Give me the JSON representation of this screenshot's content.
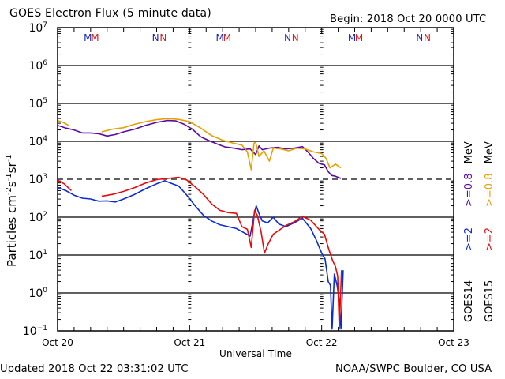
{
  "header": {
    "title": "GOES Electron Flux (5 minute data)",
    "begin": "Begin: 2018 Oct 20 0000 UTC"
  },
  "footer": {
    "updated": "Updated 2018 Oct 22 03:31:02 UTC",
    "credit": "NOAA/SWPC Boulder, CO USA"
  },
  "colors": {
    "goes14_08": "#5a0aa0",
    "goes15_08": "#e8a000",
    "goes14_2": "#0a2ad8",
    "goes15_2": "#e80a0a",
    "axis": "#000000"
  },
  "markers": [
    {
      "label": "M",
      "day": 0,
      "hour": 5.5,
      "color": "#1a2ab8"
    },
    {
      "label": "M",
      "day": 0,
      "hour": 6.8,
      "color": "#d81a1a"
    },
    {
      "label": "N",
      "day": 0,
      "hour": 17.8,
      "color": "#1a2ab8"
    },
    {
      "label": "N",
      "day": 0,
      "hour": 19.2,
      "color": "#d81a1a"
    },
    {
      "label": "M",
      "day": 1,
      "hour": 5.5,
      "color": "#1a2ab8"
    },
    {
      "label": "M",
      "day": 1,
      "hour": 6.8,
      "color": "#d81a1a"
    },
    {
      "label": "N",
      "day": 1,
      "hour": 17.8,
      "color": "#1a2ab8"
    },
    {
      "label": "N",
      "day": 1,
      "hour": 19.2,
      "color": "#d81a1a"
    },
    {
      "label": "M",
      "day": 2,
      "hour": 5.5,
      "color": "#1a2ab8"
    },
    {
      "label": "M",
      "day": 2,
      "hour": 6.8,
      "color": "#d81a1a"
    },
    {
      "label": "N",
      "day": 2,
      "hour": 17.8,
      "color": "#1a2ab8"
    },
    {
      "label": "N",
      "day": 2,
      "hour": 19.2,
      "color": "#d81a1a"
    }
  ],
  "chart_data": {
    "type": "line",
    "title": "GOES Electron Flux (5 minute data)",
    "xlabel": "Universal Time",
    "ylabel_base": "Particles cm",
    "ylabel_exp1": "-2",
    "ylabel_mid1": "s",
    "ylabel_exp2": "-1",
    "ylabel_mid2": "sr",
    "ylabel_exp3": "-1",
    "x_unit": "hours since 2018 Oct 20 0000 UTC",
    "xlim": [
      0,
      72
    ],
    "ylim_log10": [
      -1,
      7
    ],
    "y_scale": "log",
    "x_ticks": [
      {
        "hour": 0,
        "label": "Oct 20"
      },
      {
        "hour": 24,
        "label": "Oct 21"
      },
      {
        "hour": 48,
        "label": "Oct 22"
      },
      {
        "hour": 72,
        "label": "Oct 23"
      }
    ],
    "y_ticks": [
      {
        "exp": 7,
        "base": "10",
        "sup": "7"
      },
      {
        "exp": 6,
        "base": "10",
        "sup": "6"
      },
      {
        "exp": 5,
        "base": "10",
        "sup": "5"
      },
      {
        "exp": 4,
        "base": "10",
        "sup": "4"
      },
      {
        "exp": 3,
        "base": "10",
        "sup": "3"
      },
      {
        "exp": 2,
        "base": "10",
        "sup": "2"
      },
      {
        "exp": 1,
        "base": "10",
        "sup": "1"
      },
      {
        "exp": 0,
        "base": "10",
        "sup": "0"
      },
      {
        "exp": -1,
        "base": "10",
        "sup": "−1"
      }
    ],
    "threshold_log10": 3,
    "gridlines_log10": [
      6,
      5,
      4,
      2,
      1,
      0
    ],
    "legend": {
      "placement": "right",
      "energy_08_14": ">=0.8",
      "energy_08_15": ">=0.8",
      "energy_2_14": ">=2",
      "energy_2_15": ">=2",
      "unit14": "MeV",
      "unit15": "MeV",
      "sat14": "GOES14",
      "sat15": "GOES15"
    },
    "series": [
      {
        "name": "GOES14 >=0.8 MeV",
        "color": "#5a0aa0",
        "segments": [
          [
            [
              0,
              4.42
            ],
            [
              1.5,
              4.35
            ],
            [
              3,
              4.3
            ],
            [
              4.5,
              4.22
            ],
            [
              6,
              4.22
            ],
            [
              7.5,
              4.2
            ],
            [
              9,
              4.14
            ],
            [
              10.5,
              4.18
            ],
            [
              12,
              4.25
            ],
            [
              14,
              4.32
            ],
            [
              16,
              4.42
            ],
            [
              18,
              4.5
            ],
            [
              20,
              4.55
            ],
            [
              21.5,
              4.54
            ],
            [
              23,
              4.45
            ],
            [
              24.5,
              4.32
            ],
            [
              26,
              4.12
            ],
            [
              27.5,
              4.02
            ],
            [
              29,
              3.93
            ],
            [
              30.5,
              3.85
            ],
            [
              32,
              3.82
            ],
            [
              33.5,
              3.78
            ],
            [
              35,
              3.8
            ],
            [
              36,
              3.65
            ],
            [
              36.6,
              3.88
            ],
            [
              37.2,
              3.78
            ],
            [
              38.5,
              3.82
            ],
            [
              40,
              3.84
            ],
            [
              41.5,
              3.8
            ],
            [
              43,
              3.82
            ],
            [
              44.5,
              3.86
            ],
            [
              45.5,
              3.72
            ],
            [
              46.5,
              3.55
            ],
            [
              47.5,
              3.42
            ],
            [
              48.5,
              3.38
            ],
            [
              49.2,
              3.2
            ],
            [
              49.8,
              3.1
            ],
            [
              50.5,
              3.08
            ],
            [
              51.5,
              3.02
            ]
          ]
        ]
      },
      {
        "name": "GOES15 >=0.8 MeV",
        "color": "#e8a000",
        "segments": [
          [
            [
              0,
              4.55
            ],
            [
              1,
              4.5
            ],
            [
              2,
              4.42
            ]
          ],
          [
            [
              8,
              4.25
            ],
            [
              10,
              4.32
            ],
            [
              12,
              4.36
            ],
            [
              14,
              4.45
            ],
            [
              16,
              4.52
            ],
            [
              18,
              4.57
            ],
            [
              20,
              4.6
            ],
            [
              22,
              4.58
            ],
            [
              24,
              4.52
            ],
            [
              26,
              4.35
            ],
            [
              28,
              4.15
            ],
            [
              30,
              4.03
            ],
            [
              32,
              3.95
            ],
            [
              33.5,
              3.9
            ],
            [
              34.5,
              3.72
            ],
            [
              35.2,
              3.25
            ],
            [
              35.7,
              3.95
            ],
            [
              36,
              3.98
            ],
            [
              36.6,
              3.6
            ],
            [
              37.5,
              3.75
            ],
            [
              38.5,
              3.48
            ],
            [
              39.2,
              3.82
            ],
            [
              40.5,
              3.8
            ],
            [
              42,
              3.75
            ],
            [
              43.5,
              3.82
            ],
            [
              45,
              3.8
            ],
            [
              46.5,
              3.72
            ],
            [
              48,
              3.68
            ],
            [
              48.8,
              3.55
            ],
            [
              49.5,
              3.3
            ],
            [
              50.5,
              3.4
            ],
            [
              51.5,
              3.3
            ]
          ]
        ]
      },
      {
        "name": "GOES14 >=2 MeV",
        "color": "#0a2ad8",
        "segments": [
          [
            [
              0,
              2.78
            ],
            [
              1.5,
              2.7
            ],
            [
              3,
              2.58
            ],
            [
              4.5,
              2.5
            ],
            [
              6,
              2.48
            ],
            [
              7.5,
              2.42
            ],
            [
              9,
              2.43
            ],
            [
              10.5,
              2.4
            ],
            [
              12,
              2.48
            ],
            [
              14,
              2.6
            ],
            [
              16,
              2.75
            ],
            [
              18,
              2.88
            ],
            [
              19.5,
              2.96
            ],
            [
              20.5,
              2.9
            ],
            [
              22,
              2.82
            ],
            [
              23.5,
              2.58
            ],
            [
              25,
              2.3
            ],
            [
              26.5,
              2.05
            ],
            [
              28,
              1.9
            ],
            [
              29.5,
              1.8
            ],
            [
              31,
              1.75
            ],
            [
              32.5,
              1.7
            ],
            [
              34,
              1.58
            ],
            [
              35,
              1.5
            ],
            [
              35.7,
              2.05
            ],
            [
              36.1,
              2.3
            ],
            [
              36.6,
              2.1
            ],
            [
              37.2,
              1.9
            ],
            [
              38.2,
              1.85
            ],
            [
              39.2,
              2.0
            ],
            [
              40.2,
              1.82
            ],
            [
              41.5,
              1.75
            ],
            [
              43,
              1.85
            ],
            [
              44.5,
              1.97
            ],
            [
              46,
              1.7
            ],
            [
              47,
              1.4
            ],
            [
              48,
              1.05
            ],
            [
              48.6,
              0.9
            ],
            [
              49.2,
              0.3
            ],
            [
              49.6,
              0.2
            ],
            [
              49.9,
              -0.95
            ],
            [
              50.3,
              0.5
            ],
            [
              50.8,
              0.2
            ],
            [
              51.2,
              -0.2
            ],
            [
              51.5,
              -0.95
            ],
            [
              51.9,
              0.6
            ]
          ]
        ]
      },
      {
        "name": "GOES15 >=2 MeV",
        "color": "#e80a0a",
        "segments": [
          [
            [
              0,
              2.98
            ],
            [
              1.2,
              2.88
            ],
            [
              2.5,
              2.7
            ]
          ],
          [
            [
              8,
              2.55
            ],
            [
              10,
              2.6
            ],
            [
              12,
              2.68
            ],
            [
              14,
              2.78
            ],
            [
              16,
              2.9
            ],
            [
              18,
              2.99
            ],
            [
              20,
              3.02
            ],
            [
              22,
              3.05
            ],
            [
              23.5,
              2.98
            ],
            [
              25,
              2.8
            ],
            [
              26.5,
              2.6
            ],
            [
              28,
              2.35
            ],
            [
              29.5,
              2.18
            ],
            [
              31,
              2.12
            ],
            [
              32.5,
              2.1
            ],
            [
              33.5,
              1.75
            ],
            [
              34.5,
              1.68
            ],
            [
              35.2,
              1.2
            ],
            [
              35.8,
              2.18
            ],
            [
              36.3,
              2.05
            ],
            [
              37,
              1.6
            ],
            [
              37.6,
              1.05
            ],
            [
              38.3,
              1.3
            ],
            [
              39.2,
              1.55
            ],
            [
              40.2,
              1.65
            ],
            [
              41.5,
              1.78
            ],
            [
              43,
              1.88
            ],
            [
              44.5,
              2.02
            ],
            [
              46,
              1.92
            ],
            [
              47.5,
              1.68
            ],
            [
              48.5,
              1.55
            ],
            [
              49.3,
              1.15
            ],
            [
              50,
              0.85
            ],
            [
              50.5,
              0.7
            ],
            [
              50.9,
              0.45
            ],
            [
              51.2,
              -0.95
            ],
            [
              51.6,
              0.6
            ]
          ]
        ]
      }
    ]
  }
}
